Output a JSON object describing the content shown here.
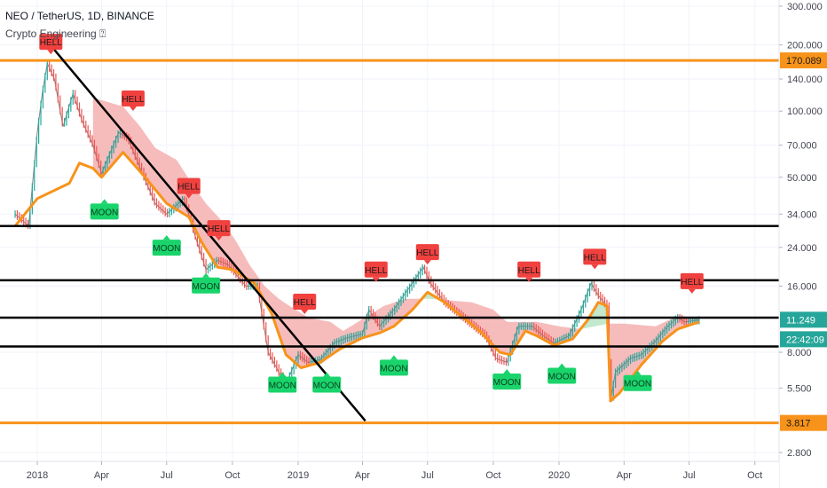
{
  "header": {
    "symbol_line": "NEO / TetherUS, 1D, BINANCE",
    "indicator": "Crypto Engineering ⍰"
  },
  "colors": {
    "price_up": "#26a69a",
    "price_down": "#ef5350",
    "support_line": "#000000",
    "level_line": "#f7931a",
    "cloud_down": "#f4b0b0",
    "cloud_up": "#b9e4c4",
    "signal_hell": "#f0413f",
    "signal_moon": "#19d46b",
    "price_tag": "#26a69a"
  },
  "chart_data": {
    "type": "line",
    "scale": "log",
    "ylim": [
      2.5,
      320
    ],
    "x_ticks": [
      "2018",
      "Apr",
      "Jul",
      "Oct",
      "2019",
      "Apr",
      "Jul",
      "Oct",
      "2020",
      "Apr",
      "Jul",
      "Oct"
    ],
    "y_ticks": [
      "300.000",
      "200.000",
      "140.000",
      "100.000",
      "70.000",
      "50.000",
      "34.000",
      "24.000",
      "16.000",
      "8.000",
      "5.500",
      "2.800"
    ],
    "price_tags": [
      {
        "label": "170.089",
        "style": "level"
      },
      {
        "label": "11.249",
        "style": "price"
      },
      {
        "label": "22:42:09",
        "style": "price"
      },
      {
        "label": "3.817",
        "style": "level"
      }
    ],
    "price": [
      [
        "2017-12-01",
        34
      ],
      [
        "2017-12-20",
        30
      ],
      [
        "2018-01-01",
        80
      ],
      [
        "2018-01-08",
        120
      ],
      [
        "2018-01-15",
        165
      ],
      [
        "2018-01-25",
        140
      ],
      [
        "2018-02-06",
        85
      ],
      [
        "2018-02-20",
        120
      ],
      [
        "2018-03-05",
        90
      ],
      [
        "2018-03-20",
        70
      ],
      [
        "2018-04-01",
        52
      ],
      [
        "2018-04-25",
        80
      ],
      [
        "2018-05-08",
        75
      ],
      [
        "2018-05-25",
        55
      ],
      [
        "2018-06-15",
        38
      ],
      [
        "2018-07-01",
        34
      ],
      [
        "2018-07-25",
        40
      ],
      [
        "2018-08-10",
        27
      ],
      [
        "2018-08-25",
        19
      ],
      [
        "2018-09-10",
        21
      ],
      [
        "2018-09-25",
        20
      ],
      [
        "2018-10-20",
        16
      ],
      [
        "2018-11-05",
        16
      ],
      [
        "2018-11-20",
        8
      ],
      [
        "2018-12-05",
        6.5
      ],
      [
        "2018-12-15",
        5.7
      ],
      [
        "2019-01-01",
        7.8
      ],
      [
        "2019-01-15",
        7.2
      ],
      [
        "2019-02-01",
        7.4
      ],
      [
        "2019-02-20",
        8.8
      ],
      [
        "2019-03-10",
        9.3
      ],
      [
        "2019-04-01",
        9.7
      ],
      [
        "2019-04-10",
        12.5
      ],
      [
        "2019-04-25",
        10.5
      ],
      [
        "2019-05-15",
        12.5
      ],
      [
        "2019-06-01",
        15
      ],
      [
        "2019-06-25",
        19.5
      ],
      [
        "2019-07-05",
        16.5
      ],
      [
        "2019-07-25",
        13.5
      ],
      [
        "2019-08-20",
        11.5
      ],
      [
        "2019-09-20",
        9.5
      ],
      [
        "2019-10-05",
        7.5
      ],
      [
        "2019-10-20",
        7.2
      ],
      [
        "2019-11-05",
        10.5
      ],
      [
        "2019-11-25",
        10.5
      ],
      [
        "2019-12-10",
        9.5
      ],
      [
        "2019-12-25",
        8.8
      ],
      [
        "2020-01-15",
        9.5
      ],
      [
        "2020-02-01",
        12.5
      ],
      [
        "2020-02-15",
        16.5
      ],
      [
        "2020-02-25",
        14.5
      ],
      [
        "2020-03-08",
        13
      ],
      [
        "2020-03-13",
        4.8
      ],
      [
        "2020-03-20",
        6.5
      ],
      [
        "2020-04-10",
        7.5
      ],
      [
        "2020-04-25",
        7.8
      ],
      [
        "2020-05-15",
        9
      ],
      [
        "2020-06-01",
        10.5
      ],
      [
        "2020-06-15",
        11.5
      ],
      [
        "2020-06-25",
        11
      ],
      [
        "2020-07-15",
        11.2
      ]
    ],
    "baseline": [
      [
        "2017-12-01",
        30
      ],
      [
        "2018-01-01",
        40
      ],
      [
        "2018-02-15",
        47
      ],
      [
        "2018-03-01",
        58
      ],
      [
        "2018-03-20",
        55
      ],
      [
        "2018-04-01",
        50
      ],
      [
        "2018-05-01",
        65
      ],
      [
        "2018-06-01",
        50
      ],
      [
        "2018-07-01",
        38
      ],
      [
        "2018-08-01",
        33
      ],
      [
        "2018-08-20",
        25
      ],
      [
        "2018-09-10",
        19.5
      ],
      [
        "2018-10-01",
        19
      ],
      [
        "2018-11-01",
        16.5
      ],
      [
        "2018-11-25",
        12
      ],
      [
        "2018-12-15",
        7.8
      ],
      [
        "2019-01-05",
        6.8
      ],
      [
        "2019-02-01",
        7.2
      ],
      [
        "2019-03-01",
        8.3
      ],
      [
        "2019-04-01",
        9.3
      ],
      [
        "2019-04-25",
        9.8
      ],
      [
        "2019-05-15",
        10.5
      ],
      [
        "2019-06-10",
        12.5
      ],
      [
        "2019-07-01",
        15
      ],
      [
        "2019-07-25",
        13.5
      ],
      [
        "2019-08-20",
        11.5
      ],
      [
        "2019-09-15",
        9.8
      ],
      [
        "2019-10-10",
        8
      ],
      [
        "2019-10-25",
        7.8
      ],
      [
        "2019-11-15",
        10
      ],
      [
        "2019-12-01",
        9.5
      ],
      [
        "2019-12-25",
        8.6
      ],
      [
        "2020-01-20",
        9.2
      ],
      [
        "2020-02-10",
        11.2
      ],
      [
        "2020-02-25",
        13.5
      ],
      [
        "2020-03-08",
        13
      ],
      [
        "2020-03-13",
        4.8
      ],
      [
        "2020-03-25",
        5.2
      ],
      [
        "2020-04-25",
        7
      ],
      [
        "2020-05-25",
        9
      ],
      [
        "2020-06-15",
        10.2
      ],
      [
        "2020-07-15",
        11
      ]
    ],
    "cloud_top": [
      [
        "2018-03-20",
        115
      ],
      [
        "2018-05-01",
        105
      ],
      [
        "2018-05-25",
        85
      ],
      [
        "2018-06-15",
        68
      ],
      [
        "2018-07-15",
        60
      ],
      [
        "2018-08-05",
        47
      ],
      [
        "2018-08-25",
        38
      ],
      [
        "2018-09-15",
        32
      ],
      [
        "2018-10-05",
        26
      ],
      [
        "2018-10-25",
        20
      ],
      [
        "2018-11-15",
        16
      ],
      [
        "2018-12-05",
        14
      ],
      [
        "2018-12-20",
        13
      ],
      [
        "2019-01-15",
        11.5
      ],
      [
        "2019-02-15",
        11
      ],
      [
        "2019-03-05",
        10
      ],
      [
        "2019-05-01",
        13
      ],
      [
        "2019-06-01",
        14
      ],
      [
        "2019-06-25",
        14
      ],
      [
        "2019-07-05",
        14
      ],
      [
        "2019-09-01",
        13.5
      ],
      [
        "2019-10-01",
        12.5
      ],
      [
        "2019-10-20",
        11
      ],
      [
        "2019-12-01",
        11
      ],
      [
        "2020-01-01",
        10.5
      ],
      [
        "2020-02-01",
        10.2
      ],
      [
        "2020-03-10",
        10.8
      ],
      [
        "2020-04-01",
        10.8
      ],
      [
        "2020-05-15",
        10.5
      ],
      [
        "2020-06-10",
        11.5
      ],
      [
        "2020-07-15",
        11.5
      ]
    ],
    "trendline": [
      [
        "2018-01-25",
        190
      ],
      [
        "2019-04-05",
        3.9
      ]
    ],
    "horizontal_levels": [
      {
        "value": 170.089,
        "style": "level"
      },
      {
        "value": 30,
        "style": "support"
      },
      {
        "value": 17,
        "style": "support"
      },
      {
        "value": 11.5,
        "style": "support"
      },
      {
        "value": 8.5,
        "style": "support"
      },
      {
        "value": 3.817,
        "style": "level"
      }
    ],
    "signals": [
      {
        "type": "sell",
        "label": "HELL",
        "date": "2018-01-20",
        "value": 190
      },
      {
        "type": "sell",
        "label": "HELL",
        "date": "2018-05-15",
        "value": 105
      },
      {
        "type": "buy",
        "label": "MOON",
        "date": "2018-04-05",
        "value": 38
      },
      {
        "type": "sell",
        "label": "HELL",
        "date": "2018-08-01",
        "value": 42
      },
      {
        "type": "buy",
        "label": "MOON",
        "date": "2018-07-01",
        "value": 26
      },
      {
        "type": "sell",
        "label": "HELL",
        "date": "2018-09-12",
        "value": 27
      },
      {
        "type": "buy",
        "label": "MOON",
        "date": "2018-08-25",
        "value": 17.5
      },
      {
        "type": "sell",
        "label": "HELL",
        "date": "2019-01-10",
        "value": 12.5
      },
      {
        "type": "buy",
        "label": "MOON",
        "date": "2018-12-10",
        "value": 6.2
      },
      {
        "type": "buy",
        "label": "MOON",
        "date": "2019-02-10",
        "value": 6.2
      },
      {
        "type": "sell",
        "label": "HELL",
        "date": "2019-04-20",
        "value": 17.5
      },
      {
        "type": "buy",
        "label": "MOON",
        "date": "2019-05-15",
        "value": 7.4
      },
      {
        "type": "sell",
        "label": "HELL",
        "date": "2019-07-01",
        "value": 21
      },
      {
        "type": "sell",
        "label": "HELL",
        "date": "2019-11-20",
        "value": 17.5
      },
      {
        "type": "buy",
        "label": "MOON",
        "date": "2019-10-20",
        "value": 6.4
      },
      {
        "type": "buy",
        "label": "MOON",
        "date": "2020-01-05",
        "value": 6.8
      },
      {
        "type": "sell",
        "label": "HELL",
        "date": "2020-02-20",
        "value": 20
      },
      {
        "type": "buy",
        "label": "MOON",
        "date": "2020-04-20",
        "value": 6.3
      },
      {
        "type": "sell",
        "label": "HELL",
        "date": "2020-07-05",
        "value": 15.5
      }
    ]
  }
}
